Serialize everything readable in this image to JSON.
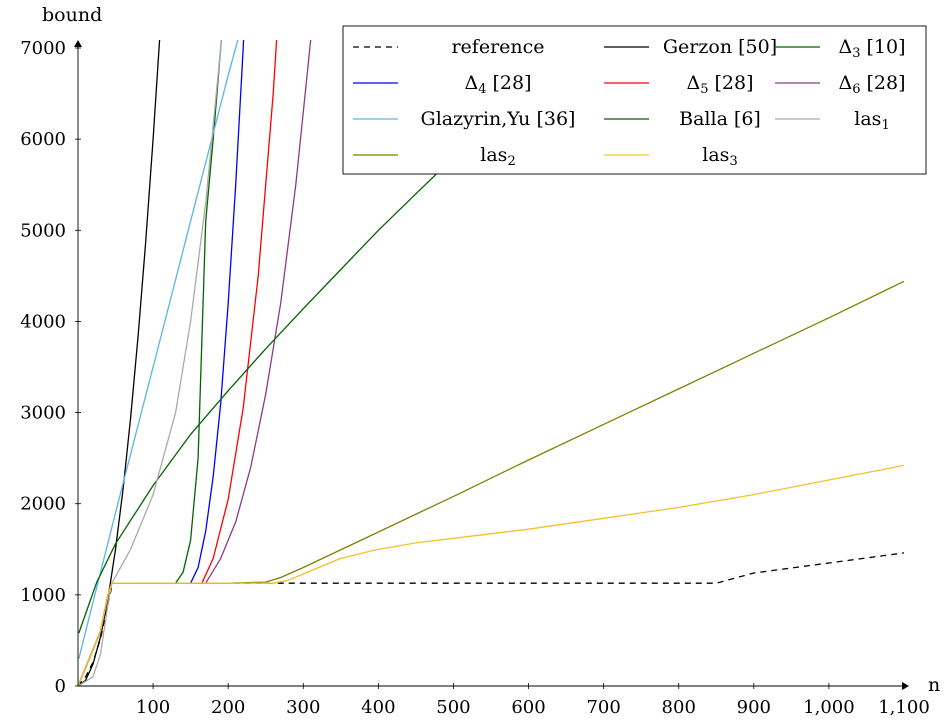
{
  "chart_data": {
    "type": "line",
    "xlabel": "n",
    "ylabel": "bound",
    "xlim": [
      0,
      1100
    ],
    "ylim": [
      0,
      7000
    ],
    "x_ticks": [
      100,
      200,
      300,
      400,
      500,
      600,
      700,
      800,
      900,
      1000,
      1100
    ],
    "x_tick_labels": [
      "100",
      "200",
      "300",
      "400",
      "500",
      "600",
      "700",
      "800",
      "900",
      "1,000",
      "1,100"
    ],
    "y_ticks": [
      0,
      1000,
      2000,
      3000,
      4000,
      5000,
      6000,
      7000
    ],
    "y_tick_labels": [
      "0",
      "1000",
      "2000",
      "3000",
      "4000",
      "5000",
      "6000",
      "7000"
    ],
    "grid": false,
    "legend_position": "top-right",
    "legend": [
      {
        "label": "reference",
        "color": "#000000",
        "dash": true
      },
      {
        "label": "Gerzon [50]",
        "color": "#000000"
      },
      {
        "label": "Δ3 [10]",
        "base": "Δ",
        "sub": "3",
        "suffix": " [10]",
        "color": "#006400"
      },
      {
        "label": "Δ4 [28]",
        "base": "Δ",
        "sub": "4",
        "suffix": " [28]",
        "color": "#0000ff"
      },
      {
        "label": "Δ5 [28]",
        "base": "Δ",
        "sub": "5",
        "suffix": " [28]",
        "color": "#ff0000"
      },
      {
        "label": "Δ6 [28]",
        "base": "Δ",
        "sub": "6",
        "suffix": " [28]",
        "color": "#8b3a8b"
      },
      {
        "label": "Glazyrin,Yu [36]",
        "color": "#5ab4e6"
      },
      {
        "label": "Balla [6]",
        "color": "#006400"
      },
      {
        "label": "las1",
        "base": "las",
        "sub": "1",
        "suffix": "",
        "color": "#aaaaaa"
      },
      {
        "label": "las2",
        "base": "las",
        "sub": "2",
        "suffix": "",
        "color": "#808000"
      },
      {
        "label": "las3",
        "base": "las",
        "sub": "3",
        "suffix": "",
        "color": "#f2c12e"
      }
    ],
    "series": [
      {
        "name": "reference",
        "color": "#000000",
        "dash": true,
        "x": [
          0,
          10,
          20,
          30,
          40,
          46,
          50,
          100,
          200,
          300,
          400,
          500,
          600,
          700,
          800,
          850,
          900,
          1000,
          1100
        ],
        "y": [
          0,
          100,
          260,
          520,
          900,
          1128,
          1128,
          1128,
          1128,
          1128,
          1128,
          1128,
          1128,
          1128,
          1128,
          1128,
          1240,
          1350,
          1460
        ]
      },
      {
        "name": "Gerzon [50]",
        "color": "#000000",
        "x": [
          0,
          10,
          20,
          30,
          40,
          50,
          60,
          70,
          80,
          90,
          100,
          110,
          120
        ],
        "y": [
          0,
          60,
          240,
          540,
          960,
          1500,
          2160,
          2940,
          3840,
          4860,
          6000,
          7260,
          8640
        ]
      },
      {
        "name": "Δ3 [10]",
        "color": "#006400",
        "x": [
          0,
          30,
          40,
          45,
          50,
          100,
          130,
          140,
          150,
          160,
          170,
          180,
          190,
          200
        ],
        "y": [
          0,
          600,
          1000,
          1128,
          1128,
          1128,
          1128,
          1250,
          1600,
          2500,
          5100,
          6000,
          7000,
          8000
        ]
      },
      {
        "name": "Δ4 [28]",
        "color": "#0000ff",
        "x": [
          0,
          30,
          40,
          45,
          50,
          100,
          150,
          160,
          170,
          180,
          190,
          200,
          210,
          220,
          230
        ],
        "y": [
          0,
          600,
          1000,
          1128,
          1128,
          1128,
          1128,
          1300,
          1700,
          2300,
          3100,
          4200,
          5500,
          7000,
          8800
        ]
      },
      {
        "name": "Δ5 [28]",
        "color": "#ff0000",
        "x": [
          0,
          30,
          40,
          45,
          50,
          100,
          165,
          180,
          200,
          220,
          240,
          260,
          270
        ],
        "y": [
          0,
          600,
          1000,
          1128,
          1128,
          1128,
          1128,
          1400,
          2050,
          3050,
          4500,
          6500,
          7800
        ]
      },
      {
        "name": "Δ6 [28]",
        "color": "#8b3a8b",
        "x": [
          0,
          30,
          40,
          45,
          50,
          100,
          170,
          190,
          210,
          230,
          250,
          270,
          290,
          310
        ],
        "y": [
          0,
          600,
          1000,
          1128,
          1128,
          1128,
          1128,
          1400,
          1800,
          2400,
          3200,
          4200,
          5500,
          7100
        ]
      },
      {
        "name": "Glazyrin,Yu [36]",
        "color": "#5ab4e6",
        "x": [
          1,
          50,
          100,
          150,
          200,
          215
        ],
        "y": [
          300,
          1900,
          3500,
          5100,
          6700,
          7150
        ]
      },
      {
        "name": "Balla [6]",
        "color": "#006400",
        "x": [
          1,
          25,
          50,
          100,
          150,
          200,
          250,
          300,
          350,
          400,
          450,
          500,
          550
        ],
        "y": [
          580,
          1140,
          1560,
          2200,
          2760,
          3240,
          3700,
          4140,
          4570,
          5000,
          5400,
          5800,
          6150
        ]
      },
      {
        "name": "las1",
        "color": "#aaaaaa",
        "x": [
          0,
          20,
          30,
          40,
          45,
          50,
          70,
          100,
          130,
          150,
          170,
          190,
          200
        ],
        "y": [
          0,
          100,
          350,
          900,
          1128,
          1200,
          1500,
          2100,
          3000,
          4000,
          5300,
          7000,
          8000
        ]
      },
      {
        "name": "las2",
        "color": "#808000",
        "x": [
          0,
          30,
          40,
          45,
          50,
          100,
          200,
          250,
          270,
          300,
          400,
          500,
          600,
          700,
          800,
          900,
          1000,
          1100
        ],
        "y": [
          0,
          600,
          1000,
          1128,
          1128,
          1128,
          1128,
          1140,
          1190,
          1300,
          1690,
          2080,
          2480,
          2870,
          3260,
          3650,
          4040,
          4440
        ]
      },
      {
        "name": "las3",
        "color": "#f2c12e",
        "x": [
          0,
          30,
          40,
          45,
          50,
          100,
          200,
          260,
          280,
          300,
          350,
          400,
          450,
          500,
          600,
          700,
          800,
          900,
          1000,
          1100
        ],
        "y": [
          0,
          600,
          1000,
          1128,
          1128,
          1128,
          1128,
          1128,
          1160,
          1230,
          1400,
          1500,
          1570,
          1620,
          1720,
          1840,
          1960,
          2100,
          2260,
          2420
        ]
      }
    ]
  }
}
